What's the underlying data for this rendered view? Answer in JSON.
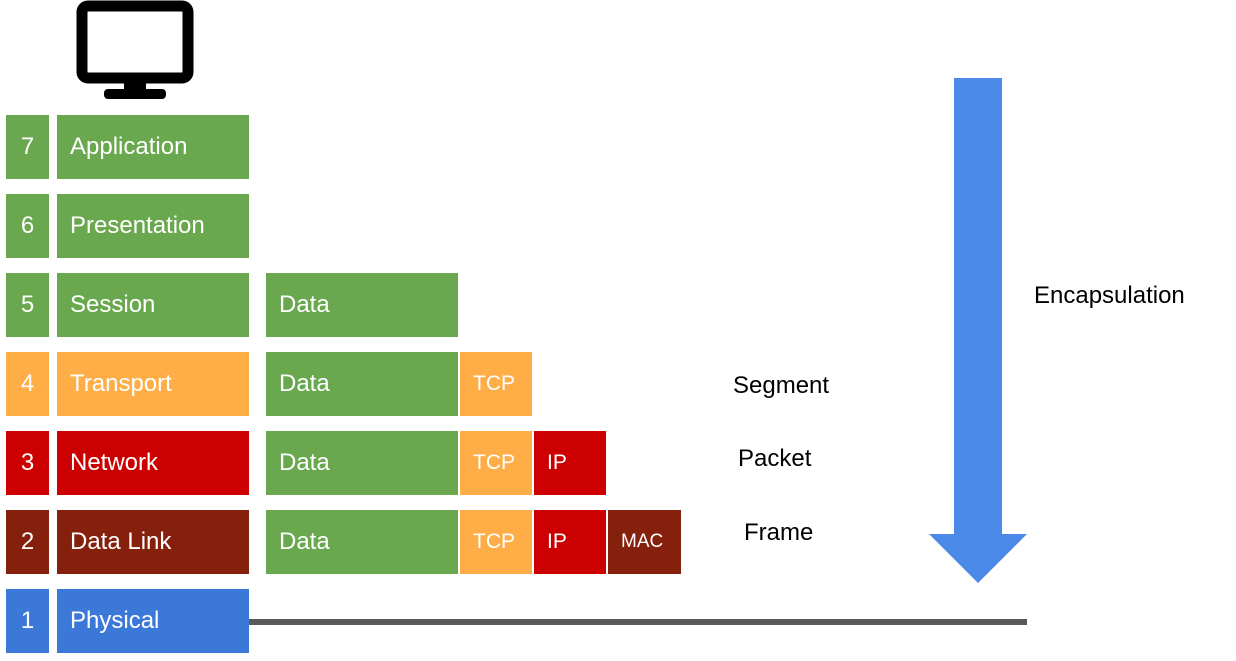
{
  "colors": {
    "application": "#6aa84f",
    "transport": "#ffad47",
    "network": "#cc0000",
    "datalink": "#85200c",
    "physical": "#3c78d8",
    "arrow": "#4a89e8",
    "wire": "#595959"
  },
  "icons": {
    "host": "monitor-icon"
  },
  "layers": [
    {
      "number": "7",
      "name": "Application"
    },
    {
      "number": "6",
      "name": "Presentation"
    },
    {
      "number": "5",
      "name": "Session"
    },
    {
      "number": "4",
      "name": "Transport"
    },
    {
      "number": "3",
      "name": "Network"
    },
    {
      "number": "2",
      "name": "Data Link"
    },
    {
      "number": "1",
      "name": "Physical"
    }
  ],
  "headers": {
    "data": "Data",
    "tcp": "TCP",
    "ip": "IP",
    "mac": "MAC"
  },
  "pdu_labels": {
    "segment": "Segment",
    "packet": "Packet",
    "frame": "Frame"
  },
  "arrow_label": "Encapsulation"
}
